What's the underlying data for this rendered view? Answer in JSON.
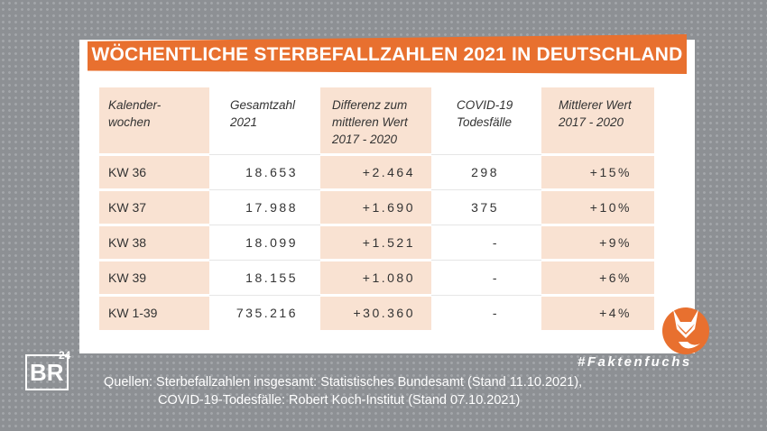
{
  "title": "WÖCHENTLICHE STERBEFALLZAHLEN 2021 IN DEUTSCHLAND",
  "table": {
    "header": [
      [
        "Kalender-",
        "wochen"
      ],
      [
        "Gesamtzahl",
        "2021"
      ],
      [
        "Differenz zum",
        "mittleren Wert",
        "2017 - 2020"
      ],
      [
        "COVID-19",
        "Todesfälle"
      ],
      [
        "Mittlerer Wert",
        "2017 - 2020"
      ]
    ],
    "rows": [
      [
        "KW 36",
        "18.653",
        "+2.464",
        "298",
        "+15%"
      ],
      [
        "KW 37",
        "17.988",
        "+1.690",
        "375",
        "+10%"
      ],
      [
        "KW 38",
        "18.099",
        "+1.521",
        "-",
        "+9%"
      ],
      [
        "KW 39",
        "18.155",
        "+1.080",
        "-",
        "+6%"
      ],
      [
        "KW 1-39",
        "735.216",
        "+30.360",
        "-",
        "+4%"
      ]
    ]
  },
  "hashtag": "#Faktenfuchs",
  "sources": [
    "Quellen: Sterbefallzahlen insgesamt: Statistisches Bundesamt (Stand 11.10.2021),",
    "COVID-19-Todesfälle: Robert Koch-Institut (Stand 07.10.2021)"
  ],
  "logo": {
    "main": "BR",
    "sup": "24"
  }
}
